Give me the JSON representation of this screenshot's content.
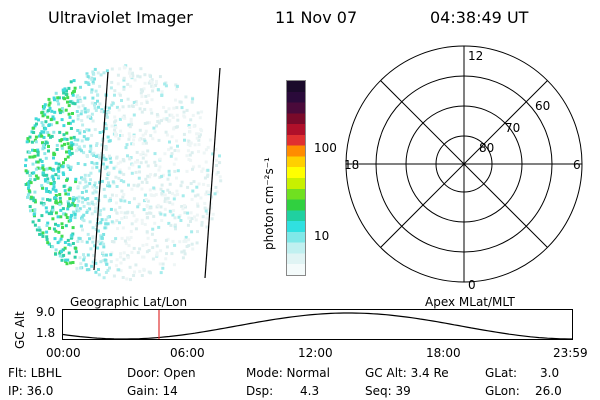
{
  "header": {
    "title": "Ultraviolet Imager",
    "date": "11 Nov 07",
    "time": "04:38:49 UT"
  },
  "colorbar": {
    "unit_label": "photon cm⁻²s⁻¹",
    "ticks": [
      "100",
      "10"
    ],
    "colors": [
      "#1a0a2a",
      "#2a0a3a",
      "#4a0a3a",
      "#7a0a2a",
      "#b0102a",
      "#e03030",
      "#ff8c00",
      "#ffd000",
      "#ffff00",
      "#c8f000",
      "#70e020",
      "#30d040",
      "#20d0a0",
      "#30e0e0",
      "#80e8e8",
      "#c0f0f0",
      "#e0f4f4",
      "#f4fbfb"
    ]
  },
  "polar": {
    "mlt_labels": [
      "12",
      "18",
      "6",
      "0"
    ],
    "lat_labels": [
      "60",
      "70",
      "80"
    ]
  },
  "orbit": {
    "left_title": "Geographic Lat/Lon",
    "right_title": "Apex MLat/MLT",
    "y_axis_title": "GC Alt",
    "y_ticks": [
      "9.0",
      "1.8"
    ],
    "x_ticks": [
      "00:00",
      "06:00",
      "12:00",
      "18:00",
      "23:59"
    ],
    "marker_color": "#e03030"
  },
  "info": {
    "flt": "Flt: LBHL",
    "door": "Door: Open",
    "mode": "Mode: Normal",
    "gc_alt": "GC Alt: 3.4 Re",
    "glat": "GLat:",
    "glat_val": "3.0",
    "ip": "IP: 36.0",
    "gain": "Gain: 14",
    "dsp": "Dsp:",
    "dsp_val": "4.3",
    "seq": "Seq: 39",
    "glon": "GLon:",
    "glon_val": "26.0"
  }
}
